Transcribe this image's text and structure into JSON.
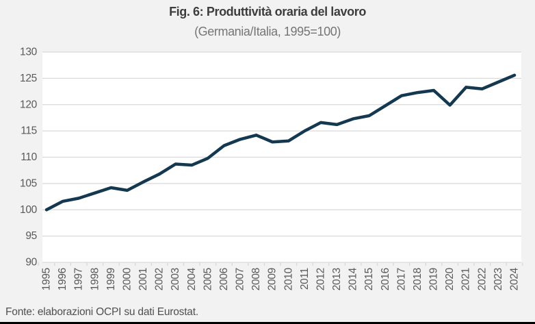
{
  "page": {
    "title": "Fig. 6: Produttività oraria del lavoro",
    "subtitle": "(Germania/Italia, 1995=100)",
    "footer": "Fonte: elaborazioni OCPI su dati Eurostat."
  },
  "colors": {
    "page_background": "#f2f2f2",
    "plot_background": "#ffffff",
    "gridline": "#d9d9d9",
    "series_line": "#143850",
    "title_text": "#3d3d3d",
    "subtitle_text": "#757575",
    "axis_text": "#595959",
    "footer_text": "#4f4f4f",
    "bottom_border": "#000000"
  },
  "chart_data": {
    "type": "line",
    "title": "Fig. 6: Produttività oraria del lavoro",
    "subtitle": "(Germania/Italia, 1995=100)",
    "x": [
      1995,
      1996,
      1997,
      1998,
      1999,
      2000,
      2001,
      2002,
      2003,
      2004,
      2005,
      2006,
      2007,
      2008,
      2009,
      2010,
      2011,
      2012,
      2013,
      2014,
      2015,
      2016,
      2017,
      2018,
      2019,
      2020,
      2021,
      2022,
      2023,
      2024
    ],
    "series": [
      {
        "name": "Germania/Italia (1995=100)",
        "values": [
          100.0,
          101.6,
          102.2,
          103.2,
          104.2,
          103.7,
          105.3,
          106.8,
          108.7,
          108.5,
          109.8,
          112.2,
          113.4,
          114.2,
          112.9,
          113.1,
          115.0,
          116.6,
          116.2,
          117.3,
          117.9,
          119.8,
          121.7,
          122.3,
          122.7,
          119.9,
          123.3,
          123.0,
          124.3,
          125.6
        ]
      }
    ],
    "ylim": [
      90,
      130
    ],
    "ytick_step": 5,
    "grid": "horizontal-only",
    "legend_position": "none",
    "x_tick_label_rotation": 90
  }
}
